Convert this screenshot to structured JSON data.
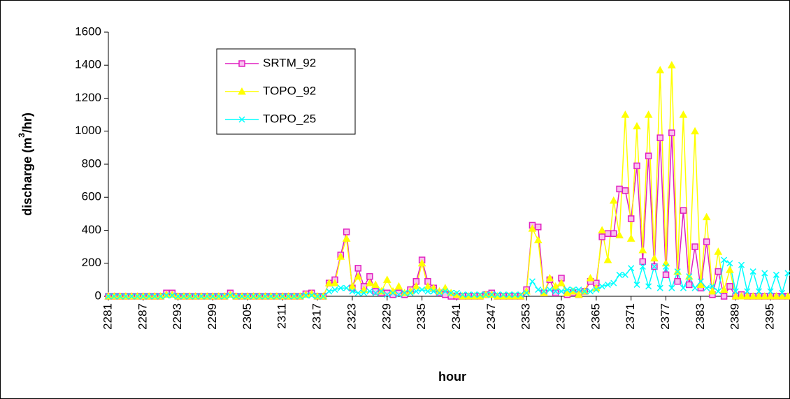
{
  "chart_data": {
    "type": "line",
    "x_label": "hour",
    "y_label": [
      "discharge (m",
      "3",
      "/hr)"
    ],
    "categories": [
      "2281",
      null,
      null,
      null,
      null,
      null,
      "2287",
      null,
      null,
      null,
      null,
      null,
      "2293",
      null,
      null,
      null,
      null,
      null,
      "2299",
      null,
      null,
      null,
      null,
      null,
      "2305",
      null,
      null,
      null,
      null,
      null,
      "2311",
      null,
      null,
      null,
      null,
      null,
      "2317",
      null,
      null,
      null,
      null,
      null,
      "2323",
      null,
      null,
      null,
      null,
      null,
      "2329",
      null,
      null,
      null,
      null,
      null,
      "2335",
      null,
      null,
      null,
      null,
      null,
      "2341",
      null,
      null,
      null,
      null,
      null,
      "2347",
      null,
      null,
      null,
      null,
      null,
      "2353",
      null,
      null,
      null,
      null,
      null,
      "2359",
      null,
      null,
      null,
      null,
      null,
      "2365",
      null,
      null,
      null,
      null,
      null,
      "2371",
      null,
      null,
      null,
      null,
      null,
      "2377",
      null,
      null,
      null,
      null,
      null,
      "2383",
      null,
      null,
      null,
      null,
      null,
      "2389",
      null,
      null,
      null,
      null,
      null,
      "2395",
      null,
      null,
      null
    ],
    "series": [
      {
        "name": "SRTM_92",
        "color": "#e020c0",
        "marker": "square",
        "values": [
          0,
          0,
          0,
          0,
          0,
          0,
          0,
          0,
          0,
          0,
          20,
          20,
          0,
          0,
          0,
          0,
          0,
          0,
          0,
          0,
          0,
          20,
          0,
          0,
          0,
          0,
          0,
          0,
          0,
          0,
          0,
          0,
          0,
          0,
          15,
          20,
          0,
          0,
          80,
          100,
          250,
          390,
          50,
          170,
          60,
          120,
          30,
          20,
          20,
          10,
          20,
          10,
          40,
          90,
          220,
          90,
          50,
          20,
          10,
          0,
          0,
          0,
          0,
          0,
          0,
          10,
          20,
          0,
          0,
          0,
          0,
          0,
          40,
          430,
          420,
          20,
          100,
          20,
          110,
          10,
          20,
          10,
          30,
          90,
          80,
          360,
          380,
          380,
          650,
          640,
          470,
          790,
          210,
          850,
          180,
          960,
          130,
          990,
          90,
          520,
          70,
          300,
          50,
          330,
          10,
          150,
          0,
          60,
          0,
          10,
          0,
          0,
          0,
          0,
          0,
          0,
          0,
          0
        ]
      },
      {
        "name": "TOPO_92",
        "color": "#ffff00",
        "marker": "triangle",
        "values": [
          0,
          0,
          0,
          0,
          0,
          0,
          0,
          0,
          0,
          0,
          10,
          10,
          0,
          0,
          0,
          0,
          0,
          0,
          0,
          0,
          0,
          10,
          0,
          0,
          0,
          0,
          0,
          0,
          0,
          0,
          0,
          0,
          0,
          0,
          10,
          15,
          0,
          0,
          80,
          80,
          240,
          350,
          60,
          120,
          40,
          80,
          70,
          30,
          100,
          30,
          60,
          20,
          30,
          60,
          200,
          60,
          50,
          30,
          50,
          20,
          10,
          0,
          0,
          0,
          0,
          10,
          10,
          0,
          0,
          0,
          0,
          0,
          30,
          410,
          340,
          20,
          110,
          60,
          80,
          20,
          30,
          10,
          30,
          110,
          50,
          400,
          220,
          580,
          370,
          1100,
          350,
          1030,
          280,
          1100,
          230,
          1370,
          200,
          1400,
          150,
          1100,
          120,
          1000,
          70,
          480,
          30,
          270,
          40,
          160,
          0,
          0,
          0,
          0,
          0,
          0,
          0,
          0,
          0,
          0
        ]
      },
      {
        "name": "TOPO_25",
        "color": "#00ffff",
        "marker": "x",
        "values": [
          0,
          0,
          0,
          0,
          0,
          0,
          0,
          0,
          0,
          0,
          5,
          5,
          0,
          0,
          0,
          0,
          0,
          0,
          0,
          0,
          0,
          5,
          0,
          0,
          0,
          0,
          0,
          0,
          0,
          0,
          0,
          0,
          0,
          0,
          5,
          5,
          0,
          0,
          30,
          40,
          50,
          50,
          30,
          20,
          20,
          30,
          20,
          30,
          10,
          20,
          10,
          20,
          20,
          30,
          40,
          30,
          30,
          20,
          30,
          20,
          20,
          10,
          10,
          10,
          10,
          10,
          10,
          10,
          10,
          10,
          10,
          10,
          20,
          90,
          40,
          30,
          40,
          30,
          30,
          40,
          40,
          40,
          30,
          30,
          40,
          60,
          70,
          80,
          130,
          130,
          170,
          70,
          180,
          60,
          180,
          50,
          180,
          50,
          150,
          50,
          120,
          50,
          90,
          50,
          60,
          30,
          220,
          200,
          30,
          190,
          30,
          150,
          30,
          140,
          30,
          130,
          20,
          140
        ]
      }
    ],
    "ylim": [
      0,
      1600
    ],
    "yticks": [
      0,
      200,
      400,
      600,
      800,
      1000,
      1200,
      1400,
      1600
    ],
    "grid": false,
    "legend": "top-left"
  }
}
